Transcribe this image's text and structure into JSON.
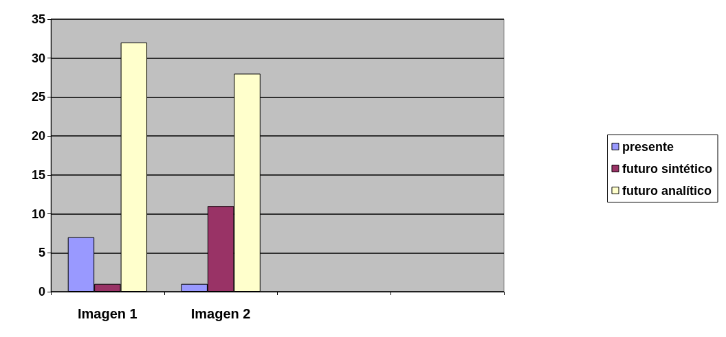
{
  "chart_data": {
    "type": "bar",
    "categories": [
      "Imagen 1",
      "Imagen 2",
      null,
      null
    ],
    "series": [
      {
        "name": "presente",
        "color": "#9999ff",
        "values": [
          7,
          1,
          null,
          null
        ]
      },
      {
        "name": "futuro sintético",
        "color": "#993366",
        "values": [
          1,
          11,
          null,
          null
        ]
      },
      {
        "name": "futuro analítico",
        "color": "#ffffcc",
        "values": [
          32,
          28,
          null,
          null
        ]
      }
    ],
    "ylim": [
      0,
      35
    ],
    "yticks": [
      0,
      5,
      10,
      15,
      20,
      25,
      30,
      35
    ],
    "grid": "y",
    "legend": "right"
  }
}
